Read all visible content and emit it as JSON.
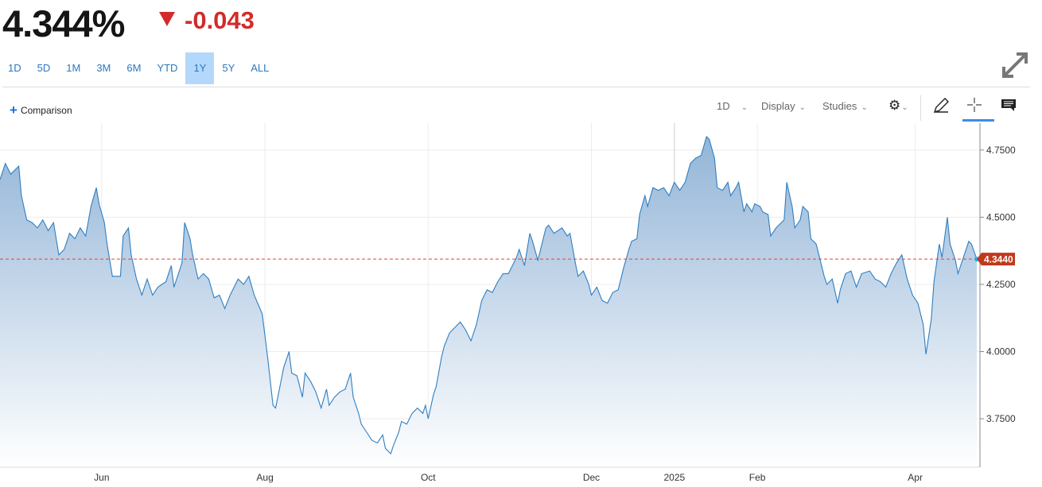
{
  "quote": {
    "price": "4.344%",
    "change": "-0.043",
    "direction": "down",
    "colors": {
      "down": "#d22b2b",
      "accent": "#2a78c0"
    }
  },
  "ranges": [
    {
      "label": "1D"
    },
    {
      "label": "5D"
    },
    {
      "label": "1M"
    },
    {
      "label": "3M"
    },
    {
      "label": "6M"
    },
    {
      "label": "YTD"
    },
    {
      "label": "1Y",
      "active": true
    },
    {
      "label": "5Y"
    },
    {
      "label": "ALL"
    }
  ],
  "toolbar": {
    "comparison": "Comparison",
    "interval": "1D",
    "display": "Display",
    "studies": "Studies",
    "icons": [
      "gear-icon",
      "pencil-icon",
      "crosshair-icon",
      "comment-icon",
      "expand-icon"
    ]
  },
  "chart_data": {
    "type": "area",
    "xlabel": "",
    "ylabel": "",
    "ylim": [
      3.57,
      4.85
    ],
    "grid": true,
    "line_color": "#2f7fc1",
    "last_value": "4.3440",
    "last_value_color": "#c0391b",
    "x_tick_labels": [
      {
        "date": "2024-06-01",
        "label": "Jun"
      },
      {
        "date": "2024-08-01",
        "label": "Aug"
      },
      {
        "date": "2024-10-01",
        "label": "Oct"
      },
      {
        "date": "2024-12-01",
        "label": "Dec"
      },
      {
        "date": "2025-01-01",
        "label": "2025"
      },
      {
        "date": "2025-02-01",
        "label": "Feb"
      },
      {
        "date": "2025-04-01",
        "label": "Apr"
      }
    ],
    "y_tick_labels": [
      {
        "value": 4.75,
        "label": "4.7500"
      },
      {
        "value": 4.5,
        "label": "4.5000"
      },
      {
        "value": 4.25,
        "label": "4.2500"
      },
      {
        "value": 4.0,
        "label": "4.0000"
      },
      {
        "value": 3.75,
        "label": "3.7500"
      }
    ],
    "points": [
      [
        "2024-04-24",
        4.64
      ],
      [
        "2024-04-26",
        4.7
      ],
      [
        "2024-04-28",
        4.66
      ],
      [
        "2024-05-01",
        4.69
      ],
      [
        "2024-05-02",
        4.58
      ],
      [
        "2024-05-04",
        4.49
      ],
      [
        "2024-05-06",
        4.48
      ],
      [
        "2024-05-08",
        4.46
      ],
      [
        "2024-05-10",
        4.49
      ],
      [
        "2024-05-12",
        4.45
      ],
      [
        "2024-05-14",
        4.48
      ],
      [
        "2024-05-16",
        4.36
      ],
      [
        "2024-05-18",
        4.38
      ],
      [
        "2024-05-20",
        4.44
      ],
      [
        "2024-05-22",
        4.42
      ],
      [
        "2024-05-24",
        4.46
      ],
      [
        "2024-05-26",
        4.43
      ],
      [
        "2024-05-28",
        4.54
      ],
      [
        "2024-05-30",
        4.61
      ],
      [
        "2024-05-31",
        4.55
      ],
      [
        "2024-06-02",
        4.48
      ],
      [
        "2024-06-03",
        4.4
      ],
      [
        "2024-06-05",
        4.28
      ],
      [
        "2024-06-08",
        4.28
      ],
      [
        "2024-06-09",
        4.43
      ],
      [
        "2024-06-11",
        4.46
      ],
      [
        "2024-06-12",
        4.36
      ],
      [
        "2024-06-14",
        4.27
      ],
      [
        "2024-06-16",
        4.21
      ],
      [
        "2024-06-18",
        4.27
      ],
      [
        "2024-06-20",
        4.21
      ],
      [
        "2024-06-22",
        4.24
      ],
      [
        "2024-06-25",
        4.26
      ],
      [
        "2024-06-27",
        4.32
      ],
      [
        "2024-06-28",
        4.24
      ],
      [
        "2024-07-01",
        4.33
      ],
      [
        "2024-07-02",
        4.48
      ],
      [
        "2024-07-04",
        4.42
      ],
      [
        "2024-07-05",
        4.36
      ],
      [
        "2024-07-07",
        4.27
      ],
      [
        "2024-07-09",
        4.29
      ],
      [
        "2024-07-11",
        4.27
      ],
      [
        "2024-07-13",
        4.2
      ],
      [
        "2024-07-15",
        4.21
      ],
      [
        "2024-07-17",
        4.16
      ],
      [
        "2024-07-19",
        4.21
      ],
      [
        "2024-07-22",
        4.27
      ],
      [
        "2024-07-24",
        4.25
      ],
      [
        "2024-07-26",
        4.28
      ],
      [
        "2024-07-28",
        4.21
      ],
      [
        "2024-07-31",
        4.14
      ],
      [
        "2024-08-02",
        3.98
      ],
      [
        "2024-08-04",
        3.8
      ],
      [
        "2024-08-05",
        3.79
      ],
      [
        "2024-08-07",
        3.89
      ],
      [
        "2024-08-08",
        3.94
      ],
      [
        "2024-08-10",
        4.0
      ],
      [
        "2024-08-11",
        3.92
      ],
      [
        "2024-08-13",
        3.91
      ],
      [
        "2024-08-15",
        3.83
      ],
      [
        "2024-08-16",
        3.92
      ],
      [
        "2024-08-18",
        3.89
      ],
      [
        "2024-08-20",
        3.85
      ],
      [
        "2024-08-22",
        3.79
      ],
      [
        "2024-08-24",
        3.86
      ],
      [
        "2024-08-25",
        3.8
      ],
      [
        "2024-08-27",
        3.83
      ],
      [
        "2024-08-29",
        3.85
      ],
      [
        "2024-08-31",
        3.86
      ],
      [
        "2024-09-02",
        3.92
      ],
      [
        "2024-09-03",
        3.83
      ],
      [
        "2024-09-05",
        3.77
      ],
      [
        "2024-09-06",
        3.73
      ],
      [
        "2024-09-08",
        3.7
      ],
      [
        "2024-09-10",
        3.67
      ],
      [
        "2024-09-12",
        3.66
      ],
      [
        "2024-09-14",
        3.69
      ],
      [
        "2024-09-15",
        3.64
      ],
      [
        "2024-09-17",
        3.62
      ],
      [
        "2024-09-18",
        3.65
      ],
      [
        "2024-09-20",
        3.7
      ],
      [
        "2024-09-21",
        3.74
      ],
      [
        "2024-09-23",
        3.73
      ],
      [
        "2024-09-25",
        3.77
      ],
      [
        "2024-09-27",
        3.79
      ],
      [
        "2024-09-29",
        3.77
      ],
      [
        "2024-09-30",
        3.8
      ],
      [
        "2024-10-01",
        3.75
      ],
      [
        "2024-10-03",
        3.84
      ],
      [
        "2024-10-04",
        3.87
      ],
      [
        "2024-10-06",
        3.98
      ],
      [
        "2024-10-07",
        4.02
      ],
      [
        "2024-10-09",
        4.07
      ],
      [
        "2024-10-10",
        4.08
      ],
      [
        "2024-10-13",
        4.11
      ],
      [
        "2024-10-15",
        4.08
      ],
      [
        "2024-10-17",
        4.04
      ],
      [
        "2024-10-19",
        4.1
      ],
      [
        "2024-10-21",
        4.19
      ],
      [
        "2024-10-23",
        4.23
      ],
      [
        "2024-10-25",
        4.22
      ],
      [
        "2024-10-27",
        4.26
      ],
      [
        "2024-10-29",
        4.29
      ],
      [
        "2024-10-31",
        4.29
      ],
      [
        "2024-11-03",
        4.35
      ],
      [
        "2024-11-04",
        4.38
      ],
      [
        "2024-11-06",
        4.32
      ],
      [
        "2024-11-08",
        4.44
      ],
      [
        "2024-11-09",
        4.41
      ],
      [
        "2024-11-11",
        4.34
      ],
      [
        "2024-11-12",
        4.38
      ],
      [
        "2024-11-14",
        4.46
      ],
      [
        "2024-11-15",
        4.47
      ],
      [
        "2024-11-17",
        4.44
      ],
      [
        "2024-11-20",
        4.46
      ],
      [
        "2024-11-22",
        4.43
      ],
      [
        "2024-11-23",
        4.44
      ],
      [
        "2024-11-25",
        4.33
      ],
      [
        "2024-11-26",
        4.28
      ],
      [
        "2024-11-28",
        4.3
      ],
      [
        "2024-11-30",
        4.25
      ],
      [
        "2024-12-01",
        4.21
      ],
      [
        "2024-12-03",
        4.24
      ],
      [
        "2024-12-05",
        4.19
      ],
      [
        "2024-12-07",
        4.18
      ],
      [
        "2024-12-09",
        4.22
      ],
      [
        "2024-12-11",
        4.23
      ],
      [
        "2024-12-13",
        4.31
      ],
      [
        "2024-12-15",
        4.38
      ],
      [
        "2024-12-16",
        4.41
      ],
      [
        "2024-12-18",
        4.42
      ],
      [
        "2024-12-19",
        4.51
      ],
      [
        "2024-12-21",
        4.58
      ],
      [
        "2024-12-22",
        4.54
      ],
      [
        "2024-12-24",
        4.61
      ],
      [
        "2024-12-26",
        4.6
      ],
      [
        "2024-12-28",
        4.61
      ],
      [
        "2024-12-30",
        4.58
      ],
      [
        "2025-01-01",
        4.63
      ],
      [
        "2025-01-03",
        4.6
      ],
      [
        "2025-01-05",
        4.63
      ],
      [
        "2025-01-07",
        4.7
      ],
      [
        "2025-01-09",
        4.72
      ],
      [
        "2025-01-11",
        4.73
      ],
      [
        "2025-01-13",
        4.8
      ],
      [
        "2025-01-14",
        4.79
      ],
      [
        "2025-01-16",
        4.72
      ],
      [
        "2025-01-17",
        4.61
      ],
      [
        "2025-01-19",
        4.6
      ],
      [
        "2025-01-21",
        4.63
      ],
      [
        "2025-01-22",
        4.58
      ],
      [
        "2025-01-24",
        4.61
      ],
      [
        "2025-01-25",
        4.63
      ],
      [
        "2025-01-27",
        4.52
      ],
      [
        "2025-01-28",
        4.55
      ],
      [
        "2025-01-30",
        4.52
      ],
      [
        "2025-01-31",
        4.55
      ],
      [
        "2025-02-02",
        4.54
      ],
      [
        "2025-02-03",
        4.52
      ],
      [
        "2025-02-05",
        4.51
      ],
      [
        "2025-02-06",
        4.43
      ],
      [
        "2025-02-08",
        4.46
      ],
      [
        "2025-02-09",
        4.47
      ],
      [
        "2025-02-11",
        4.49
      ],
      [
        "2025-02-12",
        4.63
      ],
      [
        "2025-02-14",
        4.54
      ],
      [
        "2025-02-15",
        4.46
      ],
      [
        "2025-02-17",
        4.49
      ],
      [
        "2025-02-18",
        4.54
      ],
      [
        "2025-02-20",
        4.52
      ],
      [
        "2025-02-21",
        4.42
      ],
      [
        "2025-02-23",
        4.4
      ],
      [
        "2025-02-26",
        4.28
      ],
      [
        "2025-02-27",
        4.25
      ],
      [
        "2025-03-01",
        4.27
      ],
      [
        "2025-03-03",
        4.18
      ],
      [
        "2025-03-04",
        4.23
      ],
      [
        "2025-03-06",
        4.29
      ],
      [
        "2025-03-08",
        4.3
      ],
      [
        "2025-03-10",
        4.24
      ],
      [
        "2025-03-12",
        4.29
      ],
      [
        "2025-03-15",
        4.3
      ],
      [
        "2025-03-17",
        4.27
      ],
      [
        "2025-03-19",
        4.26
      ],
      [
        "2025-03-21",
        4.24
      ],
      [
        "2025-03-23",
        4.29
      ],
      [
        "2025-03-25",
        4.33
      ],
      [
        "2025-03-27",
        4.36
      ],
      [
        "2025-03-29",
        4.27
      ],
      [
        "2025-03-31",
        4.21
      ],
      [
        "2025-04-02",
        4.18
      ],
      [
        "2025-04-04",
        4.1
      ],
      [
        "2025-04-05",
        3.99
      ],
      [
        "2025-04-07",
        4.12
      ],
      [
        "2025-04-08",
        4.26
      ],
      [
        "2025-04-10",
        4.4
      ],
      [
        "2025-04-11",
        4.35
      ],
      [
        "2025-04-13",
        4.5
      ],
      [
        "2025-04-14",
        4.4
      ],
      [
        "2025-04-16",
        4.34
      ],
      [
        "2025-04-17",
        4.29
      ],
      [
        "2025-04-19",
        4.35
      ],
      [
        "2025-04-21",
        4.41
      ],
      [
        "2025-04-22",
        4.4
      ],
      [
        "2025-04-24",
        4.344
      ]
    ]
  }
}
